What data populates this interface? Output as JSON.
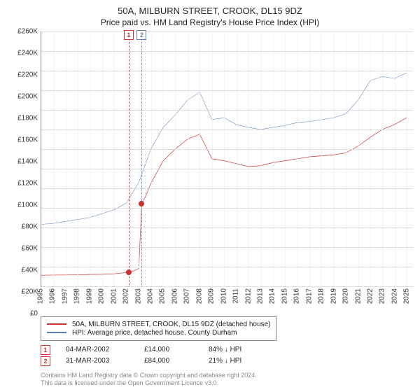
{
  "title": {
    "main": "50A, MILBURN STREET, CROOK, DL15 9DZ",
    "sub": "Price paid vs. HM Land Registry's House Price Index (HPI)",
    "main_fontsize": 13,
    "sub_fontsize": 12,
    "color": "#222222"
  },
  "chart": {
    "type": "line",
    "background_color": "#ffffff",
    "grid_color": "#dddddd",
    "axis_color": "#888888",
    "x": {
      "min": 1995,
      "max": 2025.5,
      "ticks": [
        1995,
        1996,
        1997,
        1998,
        1999,
        2000,
        2001,
        2002,
        2003,
        2004,
        2005,
        2006,
        2007,
        2008,
        2009,
        2010,
        2011,
        2012,
        2013,
        2014,
        2015,
        2016,
        2017,
        2018,
        2019,
        2020,
        2021,
        2022,
        2023,
        2024,
        2025
      ],
      "label_fontsize": 10,
      "label_rotation": -90
    },
    "y": {
      "min": 0,
      "max": 260000,
      "ticks": [
        0,
        20000,
        40000,
        60000,
        80000,
        100000,
        120000,
        140000,
        160000,
        180000,
        200000,
        220000,
        240000,
        260000
      ],
      "tick_labels": [
        "£0",
        "£20K",
        "£40K",
        "£60K",
        "£80K",
        "£100K",
        "£120K",
        "£140K",
        "£160K",
        "£180K",
        "£200K",
        "£220K",
        "£240K",
        "£260K"
      ],
      "label_fontsize": 10
    },
    "series": [
      {
        "name": "property",
        "label": "50A, MILBURN STREET, CROOK, DL15 9DZ (detached house)",
        "color": "#cc3333",
        "line_width": 2,
        "points": [
          [
            1995,
            11000
          ],
          [
            1996,
            11200
          ],
          [
            1997,
            11300
          ],
          [
            1998,
            11500
          ],
          [
            1999,
            11800
          ],
          [
            2000,
            12000
          ],
          [
            2001,
            12500
          ],
          [
            2002.17,
            14000
          ],
          [
            2002.5,
            15000
          ],
          [
            2003,
            18000
          ],
          [
            2003.24,
            84000
          ],
          [
            2003.5,
            90000
          ],
          [
            2004,
            105000
          ],
          [
            2005,
            128000
          ],
          [
            2006,
            140000
          ],
          [
            2007,
            150000
          ],
          [
            2008,
            155000
          ],
          [
            2009,
            130000
          ],
          [
            2010,
            128000
          ],
          [
            2011,
            125000
          ],
          [
            2012,
            122000
          ],
          [
            2013,
            123000
          ],
          [
            2014,
            126000
          ],
          [
            2015,
            128000
          ],
          [
            2016,
            130000
          ],
          [
            2017,
            132000
          ],
          [
            2018,
            133000
          ],
          [
            2019,
            134000
          ],
          [
            2020,
            136000
          ],
          [
            2021,
            143000
          ],
          [
            2022,
            152000
          ],
          [
            2023,
            160000
          ],
          [
            2024,
            165000
          ],
          [
            2025,
            172000
          ]
        ]
      },
      {
        "name": "hpi",
        "label": "HPI: Average price, detached house, County Durham",
        "color": "#5a7fb9",
        "line_width": 1.5,
        "points": [
          [
            1995,
            63000
          ],
          [
            1996,
            64000
          ],
          [
            1997,
            66000
          ],
          [
            1998,
            68000
          ],
          [
            1999,
            70000
          ],
          [
            2000,
            74000
          ],
          [
            2001,
            78000
          ],
          [
            2002,
            85000
          ],
          [
            2003,
            106000
          ],
          [
            2004,
            140000
          ],
          [
            2005,
            162000
          ],
          [
            2006,
            175000
          ],
          [
            2007,
            190000
          ],
          [
            2008,
            198000
          ],
          [
            2009,
            170000
          ],
          [
            2010,
            172000
          ],
          [
            2011,
            165000
          ],
          [
            2012,
            162000
          ],
          [
            2013,
            160000
          ],
          [
            2014,
            162000
          ],
          [
            2015,
            164000
          ],
          [
            2016,
            167000
          ],
          [
            2017,
            168000
          ],
          [
            2018,
            170000
          ],
          [
            2019,
            172000
          ],
          [
            2020,
            176000
          ],
          [
            2021,
            190000
          ],
          [
            2022,
            210000
          ],
          [
            2023,
            214000
          ],
          [
            2024,
            212000
          ],
          [
            2025,
            218000
          ]
        ]
      }
    ],
    "sale_markers": [
      {
        "n": 1,
        "x": 2002.17,
        "y": 14000,
        "line_color": "#cc3333",
        "badge_color": "#cc3333"
      },
      {
        "n": 2,
        "x": 2003.24,
        "y": 84000,
        "line_color": "#5a7fb9",
        "badge_color": "#5a7fb9"
      }
    ]
  },
  "legend": {
    "border_color": "#888888",
    "fontsize": 10,
    "items": [
      {
        "color": "#cc3333",
        "label": "50A, MILBURN STREET, CROOK, DL15 9DZ (detached house)"
      },
      {
        "color": "#5a7fb9",
        "label": "HPI: Average price, detached house, County Durham"
      }
    ]
  },
  "sales": [
    {
      "n": "1",
      "date": "04-MAR-2002",
      "price": "£14,000",
      "delta": "84% ↓ HPI"
    },
    {
      "n": "2",
      "date": "31-MAR-2003",
      "price": "£84,000",
      "delta": "21% ↓ HPI"
    }
  ],
  "footer": {
    "line1": "Contains HM Land Registry data © Crown copyright and database right 2024.",
    "line2": "This data is licensed under the Open Government Licence v3.0.",
    "color": "#888888",
    "fontsize": 9
  }
}
